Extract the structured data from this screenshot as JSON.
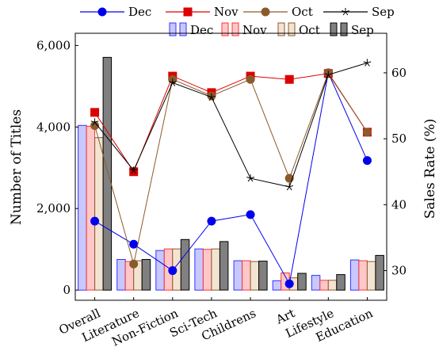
{
  "chart_data": {
    "type": "bar+line",
    "categories": [
      "Overall",
      "Literature",
      "Non-Fiction",
      "Sci-Tech",
      "Childrens",
      "Art",
      "Lifestyle",
      "Education"
    ],
    "bar_axis": {
      "label": "Number of Titles",
      "ylim": [
        -250,
        6300
      ],
      "ticks": [
        0,
        2000,
        4000,
        6000
      ],
      "tick_labels": [
        "0",
        "2,000",
        "4,000",
        "6,000"
      ]
    },
    "line_axis": {
      "label": "Sales Rate (%)",
      "ylim": [
        25.5,
        66
      ],
      "ticks": [
        30,
        40,
        50,
        60
      ],
      "tick_labels": [
        "30",
        "40",
        "50",
        "60"
      ]
    },
    "bar_series": [
      {
        "name": "Dec",
        "fill": "#c8c8ff",
        "stroke": "#3333ff",
        "values": [
          4040,
          750,
          970,
          1010,
          720,
          230,
          360,
          740
        ]
      },
      {
        "name": "Nov",
        "fill": "#ffc8c8",
        "stroke": "#ff3333",
        "values": [
          4020,
          700,
          1010,
          1000,
          720,
          420,
          240,
          720
        ]
      },
      {
        "name": "Oct",
        "fill": "#f3e4d2",
        "stroke": "#8b5a2b",
        "values": [
          3740,
          720,
          1010,
          1010,
          700,
          300,
          240,
          700
        ]
      },
      {
        "name": "Sep",
        "fill": "#808080",
        "stroke": "#000000",
        "values": [
          5710,
          750,
          1240,
          1190,
          710,
          410,
          380,
          850
        ]
      }
    ],
    "line_series": [
      {
        "name": "Dec",
        "color": "#0000ee",
        "marker": "circle",
        "values": [
          37.5,
          34,
          30,
          37.5,
          38.5,
          28,
          60,
          46.7
        ]
      },
      {
        "name": "Nov",
        "color": "#dd0000",
        "marker": "square",
        "values": [
          54,
          45,
          59.5,
          57,
          59.5,
          59,
          59.9,
          51
        ]
      },
      {
        "name": "Oct",
        "color": "#8b5a2b",
        "marker": "circle",
        "values": [
          52,
          31,
          59,
          56.5,
          59,
          44,
          60,
          51
        ]
      },
      {
        "name": "Sep",
        "color": "#000000",
        "marker": "star",
        "values": [
          52.5,
          45.2,
          58.5,
          56.3,
          44,
          42.7,
          59.7,
          61.5
        ]
      }
    ]
  }
}
